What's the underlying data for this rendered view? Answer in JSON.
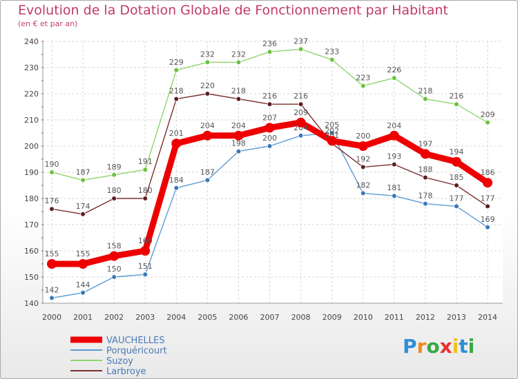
{
  "chart_data": {
    "type": "line",
    "title": "Evolution de la Dotation Globale de Fonctionnement par Habitant",
    "subtitle": "(en € et par an)",
    "xlabel": "",
    "ylabel": "",
    "categories": [
      "2000",
      "2001",
      "2002",
      "2003",
      "2004",
      "2005",
      "2006",
      "2007",
      "2008",
      "2009",
      "2010",
      "2011",
      "2012",
      "2013",
      "2014"
    ],
    "ylim": [
      140,
      240
    ],
    "yticks": [
      140,
      150,
      160,
      170,
      180,
      190,
      200,
      210,
      220,
      230,
      240
    ],
    "grid": true,
    "legend_position": "bottom-left",
    "series": [
      {
        "name": "Porquéricourt",
        "color": "#5b9bd5",
        "marker": "#3a78b8",
        "values": [
          142,
          144,
          150,
          151,
          184,
          187,
          198,
          200,
          204,
          205,
          182,
          181,
          178,
          177,
          169
        ]
      },
      {
        "name": "Suzoy",
        "color": "#8fd46a",
        "marker": "#6cc23e",
        "values": [
          190,
          187,
          189,
          191,
          229,
          232,
          232,
          236,
          237,
          233,
          223,
          226,
          218,
          216,
          209
        ]
      },
      {
        "name": "Larbroye",
        "color": "#7a2e2e",
        "marker": "#5e1f1f",
        "values": [
          176,
          174,
          180,
          180,
          218,
          220,
          218,
          216,
          216,
          201,
          192,
          193,
          188,
          185,
          177
        ]
      },
      {
        "name": "VAUCHELLES",
        "color": "#ee0000",
        "marker": "#ee0000",
        "values": [
          155,
          155,
          158,
          160,
          201,
          204,
          204,
          207,
          209,
          202,
          200,
          204,
          197,
          194,
          186
        ]
      }
    ],
    "legend_order": [
      "VAUCHELLES",
      "Porquéricourt",
      "Suzoy",
      "Larbroye"
    ]
  },
  "logo": {
    "letters": [
      "P",
      "r",
      "o",
      "x",
      "i",
      "t",
      "i"
    ],
    "colors": [
      "#2e8fd6",
      "#f08a1a",
      "#37a845",
      "#e8312e",
      "#f0c21a",
      "#2e8fd6",
      "#37a845"
    ]
  }
}
